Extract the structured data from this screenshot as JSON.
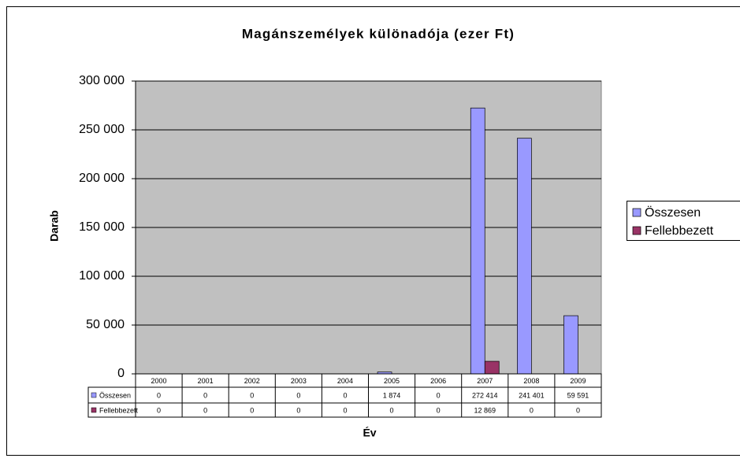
{
  "chart_data": {
    "type": "bar",
    "title": "Magánszemélyek különadója (ezer Ft)",
    "x_label": "Év",
    "y_label": "Darab",
    "categories": [
      "2000",
      "2001",
      "2002",
      "2003",
      "2004",
      "2005",
      "2006",
      "2007",
      "2008",
      "2009"
    ],
    "series": [
      {
        "name": "Összesen",
        "color": "#9999ff",
        "values": [
          0,
          0,
          0,
          0,
          0,
          1874,
          0,
          272414,
          241401,
          59591
        ],
        "value_labels": [
          "0",
          "0",
          "0",
          "0",
          "0",
          "1 874",
          "0",
          "272 414",
          "241 401",
          "59 591"
        ]
      },
      {
        "name": "Fellebbezett",
        "color": "#993366",
        "values": [
          0,
          0,
          0,
          0,
          0,
          0,
          0,
          12869,
          0,
          0
        ],
        "value_labels": [
          "0",
          "0",
          "0",
          "0",
          "0",
          "0",
          "0",
          "12 869",
          "0",
          "0"
        ]
      }
    ],
    "ylim": [
      0,
      300000
    ],
    "yticks": [
      0,
      {
        "value": 50000,
        "label": "50 000"
      },
      {
        "value": 100000,
        "label": "100 000"
      },
      {
        "value": 150000,
        "label": "150 000"
      },
      {
        "value": 200000,
        "label": "200 000"
      },
      {
        "value": 250000,
        "label": "250 000"
      },
      {
        "value": 300000,
        "label": "300 000"
      }
    ],
    "grid": true,
    "legend": "right",
    "plot_background": "#c0c0c0"
  }
}
